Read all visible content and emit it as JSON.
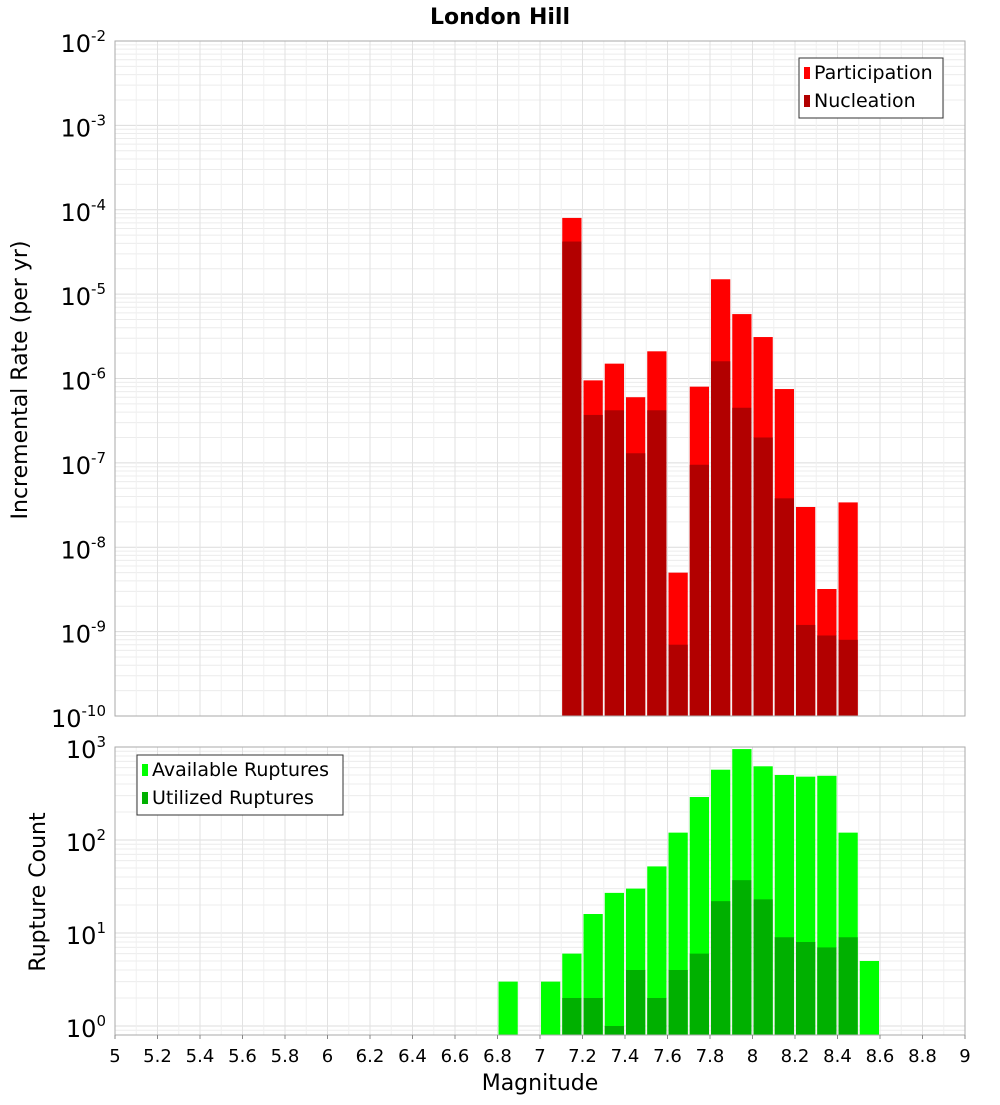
{
  "chart_data": [
    {
      "type": "bar",
      "title": "London Hill",
      "xlabel": "",
      "ylabel": "Incremental Rate (per yr)",
      "yscale": "log",
      "ylim": [
        1e-10,
        0.01
      ],
      "xlim": [
        5,
        9
      ],
      "grid": true,
      "legend_position": "top-right",
      "y_ticks": [
        {
          "base": "10",
          "exp": "-10"
        },
        {
          "base": "10",
          "exp": "-9"
        },
        {
          "base": "10",
          "exp": "-8"
        },
        {
          "base": "10",
          "exp": "-7"
        },
        {
          "base": "10",
          "exp": "-6"
        },
        {
          "base": "10",
          "exp": "-5"
        },
        {
          "base": "10",
          "exp": "-4"
        },
        {
          "base": "10",
          "exp": "-3"
        },
        {
          "base": "10",
          "exp": "-2"
        }
      ],
      "series": [
        {
          "name": "Participation",
          "color": "#ff0000",
          "x": [
            7.15,
            7.25,
            7.35,
            7.45,
            7.55,
            7.65,
            7.75,
            7.85,
            7.95,
            8.05,
            8.15,
            8.25,
            8.35,
            8.45
          ],
          "values": [
            8e-05,
            9.5e-07,
            1.5e-06,
            6e-07,
            2.1e-06,
            5e-09,
            8e-07,
            1.5e-05,
            5.8e-06,
            3.1e-06,
            7.5e-07,
            3e-08,
            3.2e-09,
            3.4e-08
          ]
        },
        {
          "name": "Nucleation",
          "color": "#b20000",
          "x": [
            7.15,
            7.25,
            7.35,
            7.45,
            7.55,
            7.65,
            7.75,
            7.85,
            7.95,
            8.05,
            8.15,
            8.25,
            8.35,
            8.45
          ],
          "values": [
            4.2e-05,
            3.7e-07,
            4.2e-07,
            1.3e-07,
            4.2e-07,
            7e-10,
            9.5e-08,
            1.6e-06,
            4.5e-07,
            2e-07,
            3.8e-08,
            1.2e-09,
            9e-10,
            8e-10
          ]
        }
      ]
    },
    {
      "type": "bar",
      "title": "",
      "xlabel": "Magnitude",
      "ylabel": "Rupture Count",
      "yscale": "log",
      "ylim": [
        0.8,
        1000
      ],
      "xlim": [
        5,
        9
      ],
      "grid": true,
      "legend_position": "top-left",
      "y_ticks": [
        {
          "base": "10",
          "exp": "0"
        },
        {
          "base": "10",
          "exp": "1"
        },
        {
          "base": "10",
          "exp": "2"
        },
        {
          "base": "10",
          "exp": "3"
        }
      ],
      "x_ticks": [
        "5",
        "5.2",
        "5.4",
        "5.6",
        "5.8",
        "6",
        "6.2",
        "6.4",
        "6.6",
        "6.8",
        "7",
        "7.2",
        "7.4",
        "7.6",
        "7.8",
        "8",
        "8.2",
        "8.4",
        "8.6",
        "8.8",
        "9"
      ],
      "series": [
        {
          "name": "Available Ruptures",
          "color": "#00ff00",
          "x": [
            6.85,
            7.05,
            7.15,
            7.25,
            7.35,
            7.45,
            7.55,
            7.65,
            7.75,
            7.85,
            7.95,
            8.05,
            8.15,
            8.25,
            8.35,
            8.45,
            8.55
          ],
          "values": [
            3,
            3,
            6,
            16,
            27,
            30,
            52,
            120,
            290,
            570,
            950,
            620,
            500,
            480,
            490,
            120,
            5
          ]
        },
        {
          "name": "Utilized Ruptures",
          "color": "#00b000",
          "x": [
            7.15,
            7.25,
            7.35,
            7.45,
            7.55,
            7.65,
            7.75,
            7.85,
            7.95,
            8.05,
            8.15,
            8.25,
            8.35,
            8.45
          ],
          "values": [
            2,
            2,
            1,
            4,
            2,
            4,
            6,
            22,
            37,
            23,
            9,
            8,
            7,
            9
          ]
        }
      ]
    }
  ]
}
